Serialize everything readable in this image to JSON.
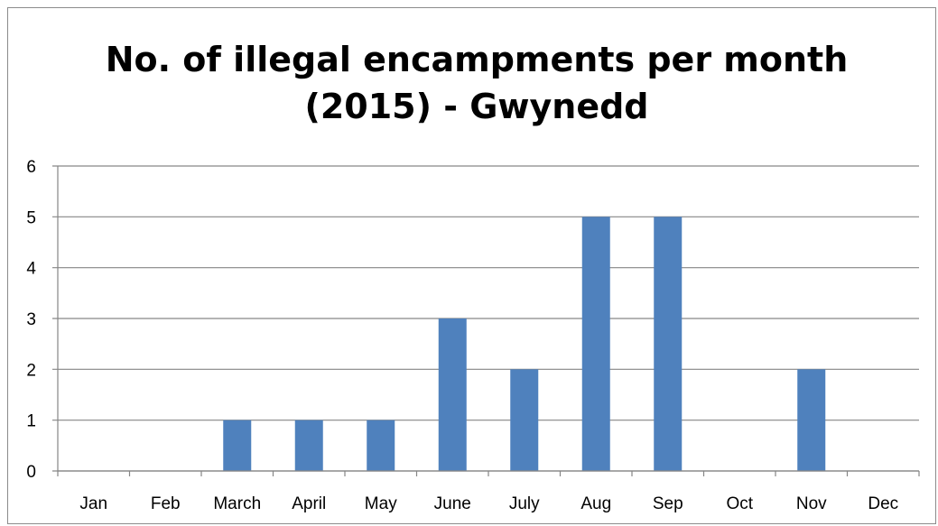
{
  "chart_data": {
    "type": "bar",
    "title_lines": [
      "No. of illegal encampments per month",
      "(2015) - Gwynedd"
    ],
    "categories": [
      "Jan",
      "Feb",
      "March",
      "April",
      "May",
      "June",
      "July",
      "Aug",
      "Sep",
      "Oct",
      "Nov",
      "Dec"
    ],
    "values": [
      0,
      0,
      1,
      1,
      1,
      3,
      2,
      5,
      5,
      0,
      2,
      0
    ],
    "ylim": [
      0,
      6
    ],
    "yticks": [
      0,
      1,
      2,
      3,
      4,
      5,
      6
    ],
    "xlabel": "",
    "ylabel": "",
    "grid": true,
    "legend": "none",
    "bar_color": "#4f81bd",
    "grid_color": "#868686"
  }
}
